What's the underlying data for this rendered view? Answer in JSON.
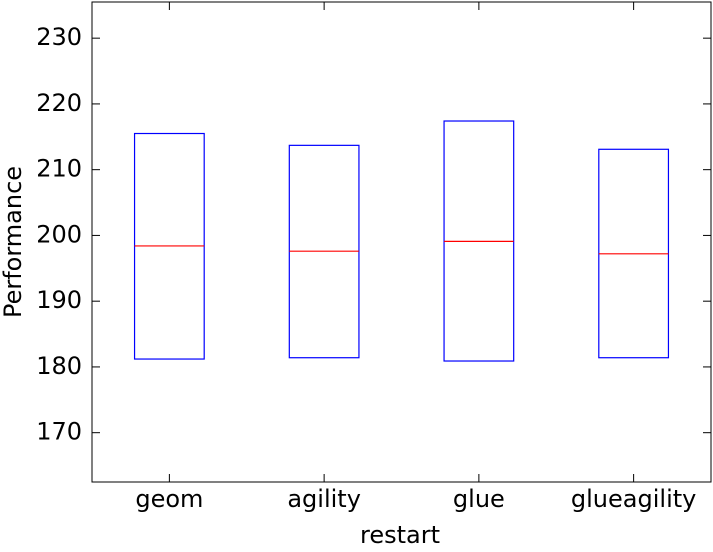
{
  "chart_data": {
    "type": "box",
    "x_label": "restart",
    "y_label": "Performance",
    "categories": [
      "geom",
      "agility",
      "glue",
      "glueagility"
    ],
    "boxes": [
      {
        "q1": 181.2,
        "median": 198.4,
        "q3": 215.5
      },
      {
        "q1": 181.4,
        "median": 197.6,
        "q3": 213.7
      },
      {
        "q1": 180.9,
        "median": 199.1,
        "q3": 217.4
      },
      {
        "q1": 181.4,
        "median": 197.2,
        "q3": 213.1
      }
    ],
    "box_color": "#0000ff",
    "median_color": "#ff0000",
    "ylim": [
      162.5,
      235.5
    ],
    "yticks": [
      170,
      180,
      190,
      200,
      210,
      220,
      230
    ],
    "grid": false
  }
}
